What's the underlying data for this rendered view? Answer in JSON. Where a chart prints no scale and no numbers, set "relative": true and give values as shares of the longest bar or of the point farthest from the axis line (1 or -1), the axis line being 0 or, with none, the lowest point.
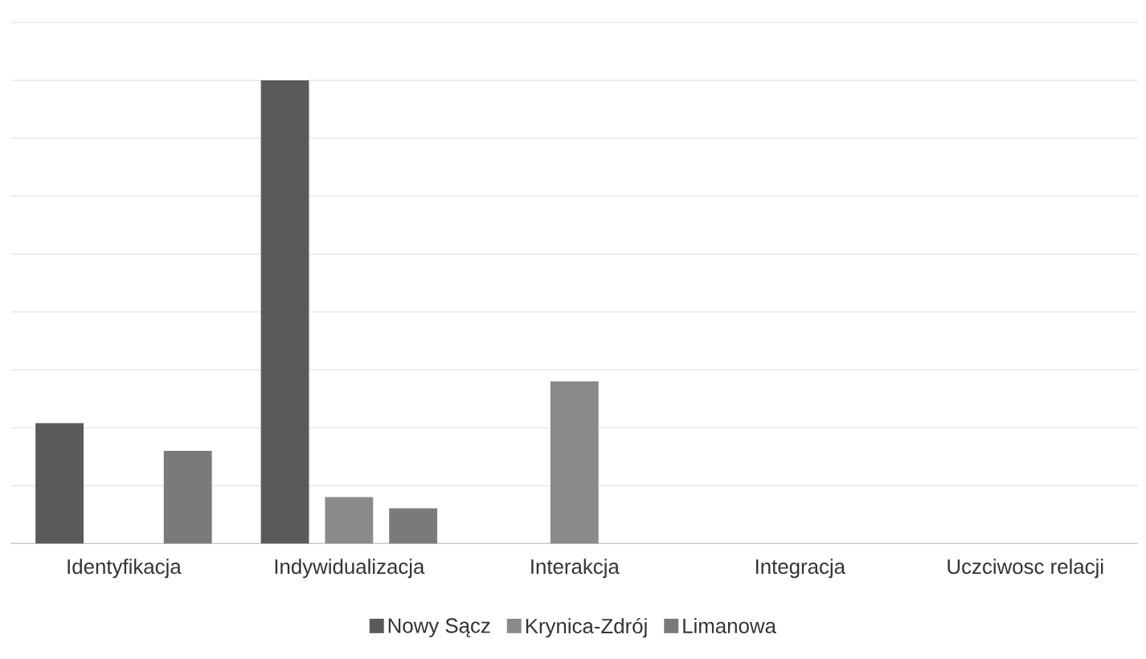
{
  "chart_data": {
    "type": "bar",
    "relative": true,
    "grid": "y",
    "legend": "bottom",
    "categories": [
      "Identyfikacja",
      "Indywidualizacja",
      "Interakcja",
      "Integracja",
      "Uczciwosc relacji"
    ],
    "series": [
      {
        "name": "Nowy Sącz",
        "color": "#5a5a5a",
        "values": [
          0.26,
          1,
          0,
          0,
          0
        ]
      },
      {
        "name": "Krynica-Zdrój",
        "color": "#8a8a8a",
        "values": [
          0,
          0.1,
          0.35,
          0,
          0
        ]
      },
      {
        "name": "Limanowa",
        "color": "#7a7a7a",
        "values": [
          0.2,
          0.076,
          0,
          0,
          0
        ]
      }
    ]
  }
}
